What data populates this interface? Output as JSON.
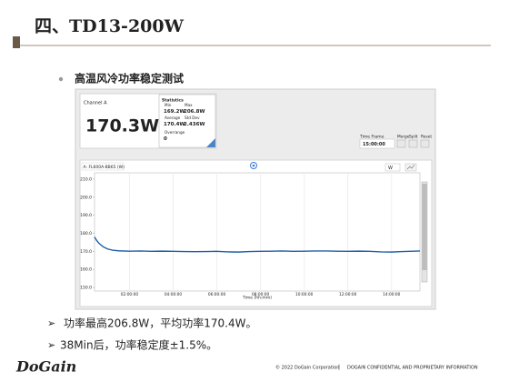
{
  "title": "四、TD13-200W",
  "bullet": "高温风冷功率稳定测试",
  "screenshot": {
    "channel": {
      "label": "Channel A",
      "value": "170.3W"
    },
    "statistics": {
      "title": "Statistics",
      "items": [
        {
          "label": "Min",
          "value": "169.2W"
        },
        {
          "label": "Max",
          "value": "206.8W"
        },
        {
          "label": "Average",
          "value": "170.4W"
        },
        {
          "label": "Std Dev",
          "value": "2.436W"
        },
        {
          "label": "Overrange",
          "value": "0"
        }
      ]
    },
    "time_frame": {
      "label": "Time Frame",
      "value": "15:00:00"
    },
    "buttons": [
      "Merge",
      "Split",
      "Reset"
    ],
    "unit_select": "W",
    "graph": {
      "type": "line",
      "legend": "A: FL600A-BB65 (W)",
      "xlabel": "Time (hh:mm)",
      "color": "#1f5fa8",
      "xlim": [
        0.4,
        15.3
      ],
      "xticks": [
        {
          "value": 2,
          "label": "02:00:00"
        },
        {
          "value": 4,
          "label": "04:00:00"
        },
        {
          "value": 6,
          "label": "06:00:00"
        },
        {
          "value": 8,
          "label": "08:00:00"
        },
        {
          "value": 10,
          "label": "10:00:00"
        },
        {
          "value": 12,
          "label": "12:00:00"
        },
        {
          "value": 14,
          "label": "14:00:00"
        }
      ],
      "ylim": [
        148,
        213.5
      ],
      "yticks": [
        {
          "value": 150,
          "label": "150.0"
        },
        {
          "value": 160,
          "label": "160.0"
        },
        {
          "value": 170,
          "label": "170.0"
        },
        {
          "value": 180,
          "label": "180.0"
        },
        {
          "value": 190,
          "label": "190.0"
        },
        {
          "value": 200,
          "label": "200.0"
        },
        {
          "value": 210,
          "label": "210.0"
        }
      ],
      "x": [
        0.4,
        0.5,
        0.6,
        0.8,
        1,
        1.25,
        1.5,
        2,
        2.5,
        3,
        3.5,
        4,
        4.5,
        5,
        5.5,
        6,
        6.5,
        7,
        7.5,
        8,
        8.5,
        9,
        9.5,
        10,
        10.5,
        11,
        11.5,
        12,
        12.5,
        13,
        13.5,
        14,
        14.5,
        15,
        15.3
      ],
      "values": [
        178,
        176,
        174.5,
        172.5,
        171.3,
        170.6,
        170.3,
        170.1,
        170.2,
        170,
        170.1,
        170,
        169.9,
        169.8,
        169.9,
        170,
        169.7,
        169.6,
        169.9,
        170,
        170.1,
        170.2,
        170,
        170.1,
        170.2,
        170.2,
        170.1,
        170,
        170.1,
        170,
        169.7,
        169.6,
        169.9,
        170.1,
        170.2
      ]
    }
  },
  "notes": [
    "功率最高206.8W，平均功率170.4W。",
    "38Min后，功率稳定度±1.5%。"
  ],
  "footer": {
    "logo": "DoGain",
    "copyright": "© 2022 DoGain Corporation",
    "divider": "|",
    "notice": "DOGAIN CONFIDENTIAL AND PROPRIETARY INFORMATION"
  }
}
